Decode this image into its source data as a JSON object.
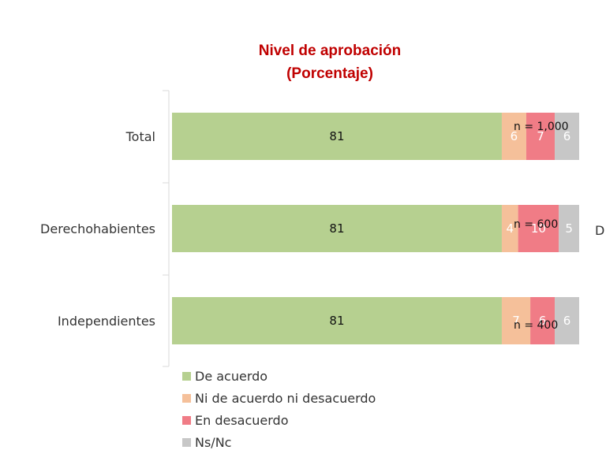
{
  "chart_data": {
    "type": "bar",
    "orientation": "horizontal",
    "stacked": true,
    "title": "Nivel de aprobación",
    "subtitle": "(Porcentaje)",
    "categories": [
      "Total",
      "Derechohabientes",
      "Independientes"
    ],
    "sample_sizes": [
      "n = 1,000",
      "n = 600",
      "n = 400"
    ],
    "series": [
      {
        "name": "De acuerdo",
        "color": "#b6d090",
        "label_color": "#111111",
        "values": [
          81,
          81,
          81
        ]
      },
      {
        "name": "Ni de acuerdo ni desacuerdo",
        "color": "#f5c09a",
        "label_color": "#ffffff",
        "values": [
          6,
          4,
          7
        ]
      },
      {
        "name": "En desacuerdo",
        "color": "#f07c86",
        "label_color": "#ffffff",
        "values": [
          7,
          10,
          6
        ]
      },
      {
        "name": "Ns/Nc",
        "color": "#c7c7c7",
        "label_color": "#ffffff",
        "values": [
          6,
          5,
          6
        ]
      }
    ],
    "xlim": [
      0,
      100
    ],
    "legend": "bottom-left",
    "grid": false
  },
  "edge_text": "D"
}
